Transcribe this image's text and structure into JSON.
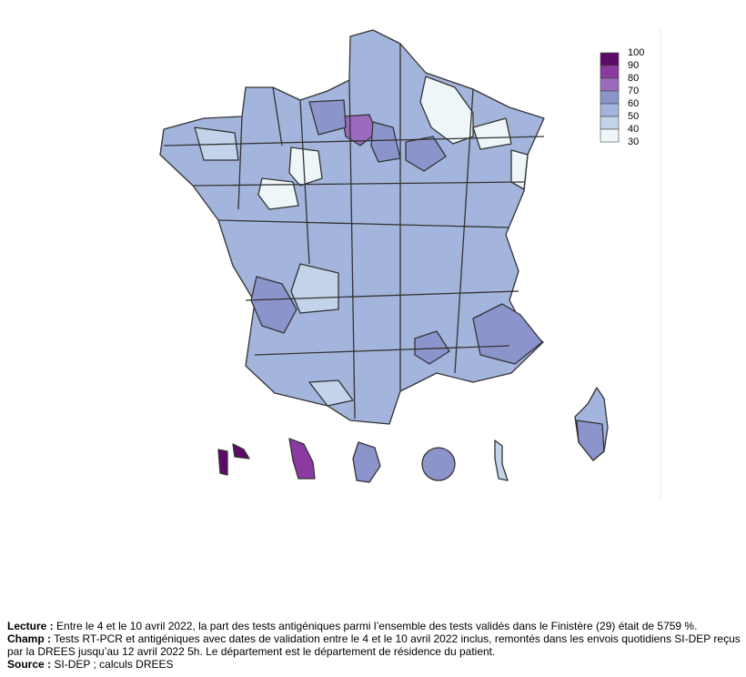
{
  "legend": {
    "ticks": [
      100,
      90,
      80,
      70,
      60,
      50,
      40,
      30
    ],
    "colors": [
      "#5e0a6a",
      "#8a3aa0",
      "#9a6bbd",
      "#8c94cc",
      "#a3b5dc",
      "#c3d3ea",
      "#eef6f9"
    ]
  },
  "notes": [
    {
      "label": "Lecture :",
      "text": "Entre le 4 et le 10 avril 2022, la part des tests antigéniques parmi l’ensemble des tests validés dans le Finistère (29) était de 5759 %."
    },
    {
      "label": "Champ :",
      "text": "Tests RT-PCR et antigéniques avec dates de validation entre le 4 et le 10 avril 2022 inclus, remontés dans les envois quotidiens SI-DEP reçus par la DREES jusqu’au 12 avril 2022 5h. Le département est le département de résidence du patient."
    },
    {
      "label": "Source :",
      "text": "SI-DEP ; calculs DREES"
    }
  ]
}
